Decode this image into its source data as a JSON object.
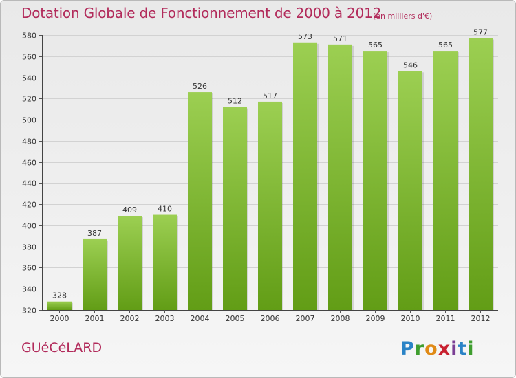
{
  "header": {
    "title": "Dotation Globale de Fonctionnement de 2000 à 2012",
    "subtitle": "(en milliers d'€)"
  },
  "footer": {
    "commune": "GUéCéLARD",
    "logo_text": "Proxiti"
  },
  "colors": {
    "title": "#b22b5b",
    "bar_top": "#9ccf52",
    "bar_bottom": "#629d16",
    "grid": "#d2d2d2",
    "axis_text": "#333333"
  },
  "chart_data": {
    "type": "bar",
    "categories": [
      "2000",
      "2001",
      "2002",
      "2003",
      "2004",
      "2005",
      "2006",
      "2007",
      "2008",
      "2009",
      "2010",
      "2011",
      "2012"
    ],
    "values": [
      328,
      387,
      409,
      410,
      526,
      512,
      517,
      573,
      571,
      565,
      546,
      565,
      577
    ],
    "title": "Dotation Globale de Fonctionnement de 2000 à 2012",
    "subtitle": "(en milliers d'€)",
    "xlabel": "",
    "ylabel": "",
    "ylim": [
      320,
      580
    ],
    "yticks": [
      320,
      340,
      360,
      380,
      400,
      420,
      440,
      460,
      480,
      500,
      520,
      540,
      560,
      580
    ],
    "grid": true,
    "data_labels": true,
    "legend": "none"
  }
}
